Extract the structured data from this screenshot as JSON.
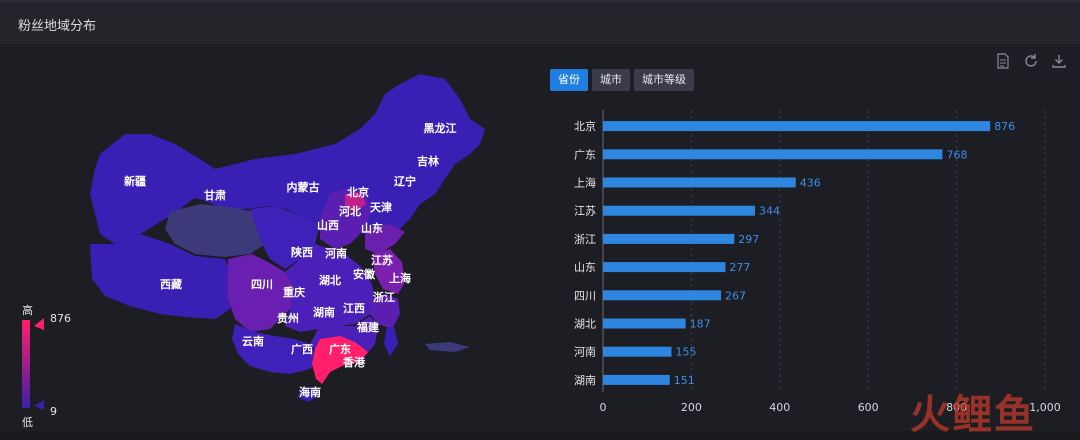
{
  "header": {
    "title": "粉丝地域分布"
  },
  "toolbox": {
    "icons": [
      "document-icon",
      "refresh-icon",
      "download-icon"
    ]
  },
  "tabs": [
    {
      "label": "省份",
      "active": true
    },
    {
      "label": "城市",
      "active": false
    },
    {
      "label": "城市等级",
      "active": false
    }
  ],
  "map": {
    "labels": [
      "新疆",
      "甘肃",
      "内蒙古",
      "黑龙江",
      "吉林",
      "辽宁",
      "北京",
      "天津",
      "河北",
      "山西",
      "山东",
      "陕西",
      "河南",
      "江苏",
      "上海",
      "安徽",
      "湖北",
      "西藏",
      "四川",
      "重庆",
      "浙江",
      "贵州",
      "湖南",
      "江西",
      "福建",
      "云南",
      "广西",
      "广东",
      "香港",
      "海南"
    ]
  },
  "visual_map": {
    "high_label": "高",
    "low_label": "低",
    "max_value": "876",
    "min_value": "9",
    "max_color": "#ff1f6b",
    "min_color": "#3b1fa8"
  },
  "chart_data": {
    "type": "bar",
    "orientation": "horizontal",
    "categories": [
      "北京",
      "广东",
      "上海",
      "江苏",
      "浙江",
      "山东",
      "四川",
      "湖北",
      "河南",
      "湖南"
    ],
    "values": [
      876,
      768,
      436,
      344,
      297,
      277,
      267,
      187,
      155,
      151
    ],
    "x_ticks": [
      "0",
      "200",
      "400",
      "600",
      "800",
      "1,000"
    ],
    "xlim": [
      0,
      1000
    ],
    "bar_color": "#2f86e0",
    "value_label_color": "#3c8fe6"
  },
  "watermark": {
    "text": "火鲤鱼"
  }
}
